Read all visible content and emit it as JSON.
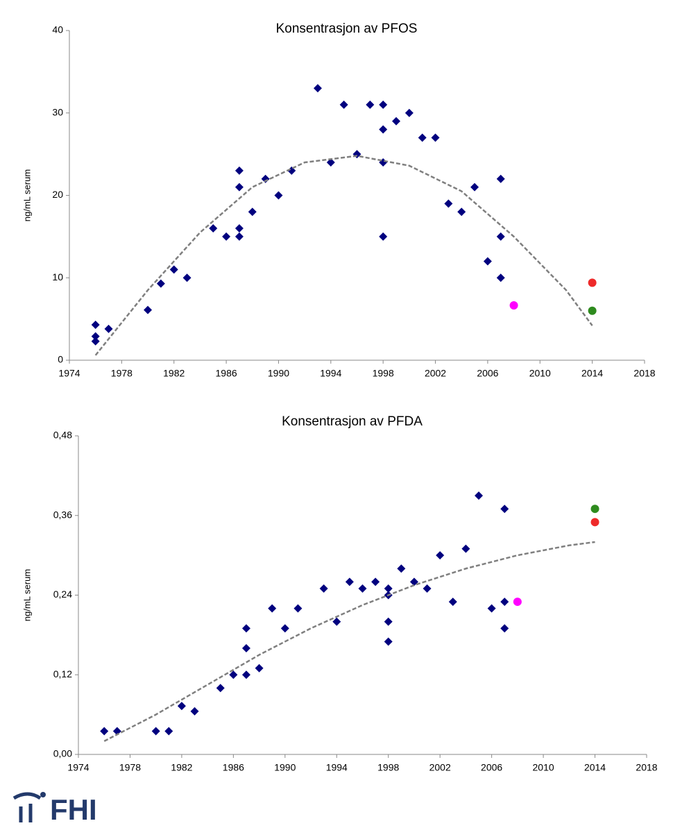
{
  "chart_data": [
    {
      "type": "scatter",
      "title": "Konsentrasjon av PFOS",
      "ylabel": "ng/mL serum",
      "xlim": [
        1974,
        2018
      ],
      "xticks": [
        1974,
        1978,
        1982,
        1986,
        1990,
        1994,
        1998,
        2002,
        2006,
        2010,
        2014,
        2018
      ],
      "ylim": [
        0,
        40
      ],
      "yticks": [
        0,
        10,
        20,
        30,
        40
      ],
      "series": [
        {
          "color": "#00007f",
          "marker": "diamond",
          "x": [
            1976,
            1976,
            1976,
            1977,
            1980,
            1981,
            1982,
            1983,
            1985,
            1986,
            1987,
            1987,
            1987,
            1987,
            1988,
            1989,
            1990,
            1991,
            1993,
            1994,
            1995,
            1996,
            1997,
            1998,
            1998,
            1998,
            1998,
            1999,
            2000,
            2001,
            2002,
            2003,
            2004,
            2005,
            2006,
            2007,
            2007,
            2007
          ],
          "values": [
            4.3,
            2.9,
            2.3,
            3.8,
            6.1,
            9.3,
            11,
            10,
            16,
            15,
            23,
            21,
            16,
            15,
            18,
            22,
            20,
            23,
            33,
            24,
            31,
            25,
            31,
            31,
            28,
            24,
            15,
            29,
            30,
            27,
            27,
            19,
            18,
            21,
            12,
            22,
            15,
            10
          ]
        },
        {
          "color": "#ff00ff",
          "marker": "circle",
          "x": [
            2008
          ],
          "values": [
            6.65
          ]
        },
        {
          "color": "#ee2a2a",
          "marker": "circle",
          "x": [
            2014
          ],
          "values": [
            9.4
          ]
        },
        {
          "color": "#2e8b1e",
          "marker": "circle",
          "x": [
            2014
          ],
          "values": [
            6.0
          ]
        },
        {
          "color": "#7f7f7f",
          "marker": "dashed-line",
          "x": [
            1976,
            1980,
            1984,
            1988,
            1992,
            1996,
            2000,
            2004,
            2008,
            2012,
            2014
          ],
          "values": [
            0.6,
            8.5,
            15.5,
            21,
            24,
            24.8,
            23.6,
            20.5,
            15,
            8.5,
            4.2
          ]
        }
      ]
    },
    {
      "type": "scatter",
      "title": "Konsentrasjon av PFDA",
      "ylabel": "ng/mL serum",
      "xlim": [
        1974,
        2018
      ],
      "xticks": [
        1974,
        1978,
        1982,
        1986,
        1990,
        1994,
        1998,
        2002,
        2006,
        2010,
        2014,
        2018
      ],
      "ylim": [
        0,
        0.48
      ],
      "yticks": [
        {
          "value": 0,
          "label": "0,00"
        },
        {
          "value": 0.12,
          "label": "0,12"
        },
        {
          "value": 0.24,
          "label": "0,24"
        },
        {
          "value": 0.36,
          "label": "0,36"
        },
        {
          "value": 0.48,
          "label": "0,48"
        }
      ],
      "series": [
        {
          "color": "#00007f",
          "marker": "diamond",
          "x": [
            1976,
            1977,
            1980,
            1981,
            1982,
            1983,
            1985,
            1986,
            1987,
            1987,
            1987,
            1988,
            1989,
            1990,
            1991,
            1993,
            1994,
            1995,
            1996,
            1997,
            1998,
            1998,
            1998,
            1998,
            1999,
            2000,
            2001,
            2002,
            2003,
            2004,
            2005,
            2006,
            2007,
            2007,
            2007
          ],
          "values": [
            0.035,
            0.035,
            0.035,
            0.035,
            0.073,
            0.065,
            0.1,
            0.12,
            0.19,
            0.16,
            0.12,
            0.13,
            0.22,
            0.19,
            0.22,
            0.25,
            0.2,
            0.26,
            0.25,
            0.26,
            0.25,
            0.24,
            0.2,
            0.17,
            0.28,
            0.26,
            0.25,
            0.3,
            0.23,
            0.31,
            0.39,
            0.22,
            0.37,
            0.23,
            0.19
          ]
        },
        {
          "color": "#ff00ff",
          "marker": "circle",
          "x": [
            2008
          ],
          "values": [
            0.23
          ]
        },
        {
          "color": "#ee2a2a",
          "marker": "circle",
          "x": [
            2014
          ],
          "values": [
            0.35
          ]
        },
        {
          "color": "#2e8b1e",
          "marker": "circle",
          "x": [
            2014
          ],
          "values": [
            0.37
          ]
        },
        {
          "color": "#7f7f7f",
          "marker": "dashed-line",
          "x": [
            1976,
            1980,
            1984,
            1988,
            1992,
            1996,
            2000,
            2004,
            2008,
            2012,
            2014
          ],
          "values": [
            0.02,
            0.06,
            0.105,
            0.15,
            0.19,
            0.225,
            0.255,
            0.28,
            0.3,
            0.315,
            0.32
          ]
        }
      ]
    }
  ],
  "logo": "FHI"
}
